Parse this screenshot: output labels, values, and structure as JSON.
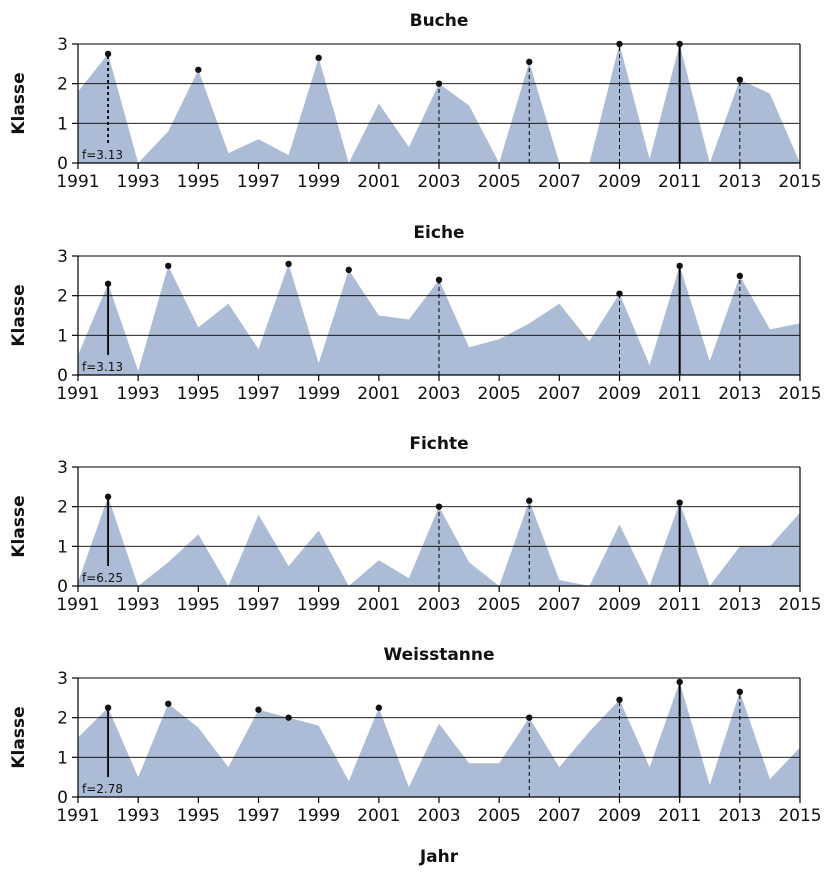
{
  "chart_data": {
    "type": "area",
    "xlabel": "Jahr",
    "ylabel": "Klasse",
    "ylim": [
      0,
      3
    ],
    "yticks": [
      0,
      1,
      2,
      3
    ],
    "xlim": [
      1991,
      2015
    ],
    "xticks": [
      1991,
      1993,
      1995,
      1997,
      1999,
      2001,
      2003,
      2005,
      2007,
      2009,
      2011,
      2013,
      2015
    ],
    "area_color": "#adbcd6",
    "grid": "horizontal",
    "x": [
      1991,
      1992,
      1993,
      1994,
      1995,
      1996,
      1997,
      1998,
      1999,
      2000,
      2001,
      2002,
      2003,
      2004,
      2005,
      2006,
      2007,
      2008,
      2009,
      2010,
      2011,
      2012,
      2013,
      2014,
      2015
    ],
    "panels": [
      {
        "title": "Buche",
        "values": [
          1.8,
          2.75,
          0,
          0.8,
          2.35,
          0.25,
          0.6,
          0.2,
          2.65,
          0,
          1.5,
          0.4,
          2.0,
          1.45,
          0,
          2.55,
          0,
          0,
          3.0,
          0.1,
          3.0,
          0,
          2.1,
          1.75,
          0
        ],
        "annotation": "f=3.13",
        "reference_year": 1992,
        "reference_style": "dotted",
        "dot_years": [
          1992,
          1995,
          1999,
          2003,
          2006,
          2009,
          2011,
          2013
        ],
        "dashed_years": [
          2003,
          2006,
          2009,
          2013
        ],
        "solid_years": [
          2011
        ]
      },
      {
        "title": "Eiche",
        "values": [
          0.5,
          2.3,
          0.1,
          2.75,
          1.2,
          1.8,
          0.65,
          2.8,
          0.3,
          2.65,
          1.5,
          1.4,
          2.4,
          0.7,
          0.9,
          1.3,
          1.8,
          0.85,
          2.05,
          0.25,
          2.75,
          0.35,
          2.5,
          1.15,
          1.3
        ],
        "annotation": "f=3.13",
        "reference_year": 1992,
        "reference_style": "solid",
        "dot_years": [
          1992,
          1994,
          1998,
          2000,
          2003,
          2009,
          2011,
          2013
        ],
        "dashed_years": [
          2003,
          2009,
          2013
        ],
        "solid_years": [
          2011
        ]
      },
      {
        "title": "Fichte",
        "values": [
          0.1,
          2.25,
          0,
          0.6,
          1.3,
          0,
          1.8,
          0.5,
          1.4,
          0,
          0.65,
          0.2,
          2.0,
          0.6,
          0,
          2.15,
          0.15,
          0,
          1.55,
          0,
          2.1,
          0,
          1.0,
          1.0,
          1.85
        ],
        "annotation": "f=6.25",
        "reference_year": 1992,
        "reference_style": "solid",
        "dot_years": [
          1992,
          2003,
          2006,
          2011
        ],
        "dashed_years": [
          2003,
          2006
        ],
        "solid_years": [
          2011
        ]
      },
      {
        "title": "Weisstanne",
        "values": [
          1.5,
          2.25,
          0.5,
          2.35,
          1.75,
          0.75,
          2.2,
          2.0,
          1.8,
          0.4,
          2.25,
          0.25,
          1.85,
          0.85,
          0.85,
          2.0,
          0.75,
          1.65,
          2.45,
          0.75,
          2.9,
          0.3,
          2.65,
          0.45,
          1.25
        ],
        "annotation": "f=2.78",
        "reference_year": 1992,
        "reference_style": "solid",
        "dot_years": [
          1992,
          1994,
          1997,
          1998,
          2001,
          2006,
          2009,
          2011,
          2013
        ],
        "dashed_years": [
          2006,
          2009,
          2013
        ],
        "solid_years": [
          2011
        ]
      }
    ]
  }
}
